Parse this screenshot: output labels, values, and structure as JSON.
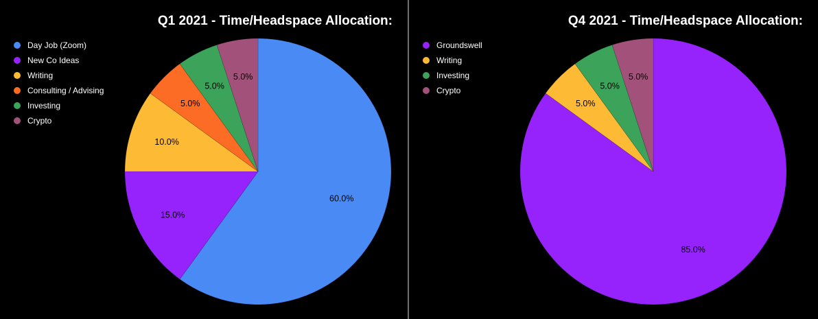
{
  "chart_data": [
    {
      "type": "pie",
      "title": "Q1 2021 - Time/Headspace Allocation:",
      "slices": [
        {
          "label": "Day Job (Zoom)",
          "value": 60.0,
          "display": "60.0%",
          "color": "#4a8af4"
        },
        {
          "label": "New Co Ideas",
          "value": 15.0,
          "display": "15.0%",
          "color": "#9723fc"
        },
        {
          "label": "Writing",
          "value": 10.0,
          "display": "10.0%",
          "color": "#fdba34"
        },
        {
          "label": "Consulting / Advising",
          "value": 5.0,
          "display": "5.0%",
          "color": "#fd6c25"
        },
        {
          "label": "Investing",
          "value": 5.0,
          "display": "5.0%",
          "color": "#3ba35a"
        },
        {
          "label": "Crypto",
          "value": 5.0,
          "display": "5.0%",
          "color": "#a2527a"
        }
      ],
      "legend_position": "top-left"
    },
    {
      "type": "pie",
      "title": "Q4 2021 - Time/Headspace Allocation:",
      "slices": [
        {
          "label": "Groundswell",
          "value": 85.0,
          "display": "85.0%",
          "color": "#9723fc"
        },
        {
          "label": "Writing",
          "value": 5.0,
          "display": "5.0%",
          "color": "#fdba34"
        },
        {
          "label": "Investing",
          "value": 5.0,
          "display": "5.0%",
          "color": "#3ba35a"
        },
        {
          "label": "Crypto",
          "value": 5.0,
          "display": "5.0%",
          "color": "#a2527a"
        }
      ],
      "legend_position": "top-left"
    }
  ]
}
